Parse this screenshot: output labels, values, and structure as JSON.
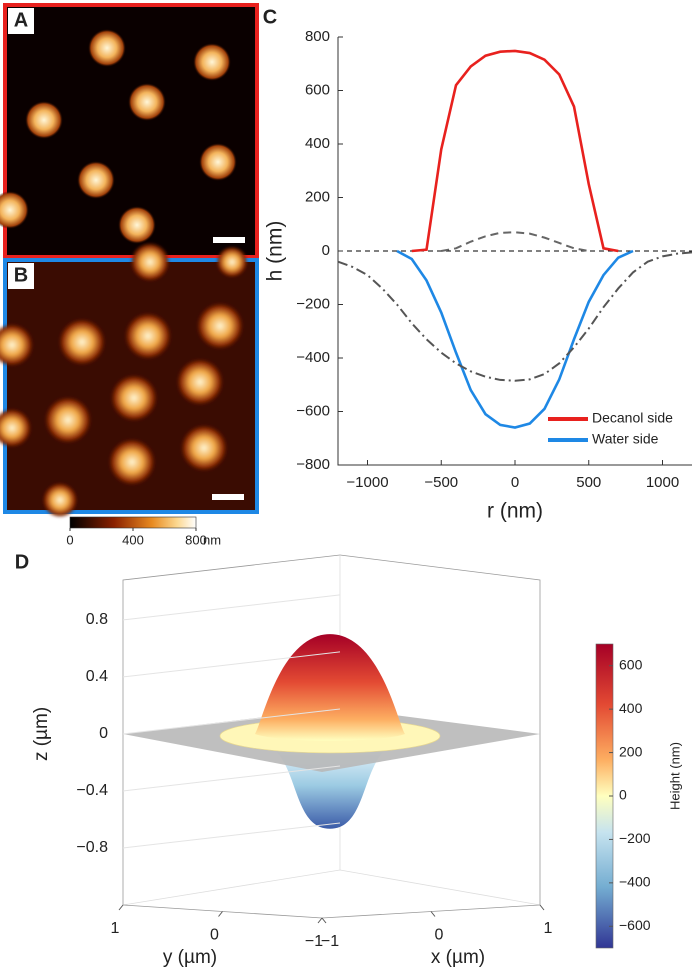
{
  "panels": [
    "A",
    "B",
    "C",
    "D"
  ],
  "chart_data": [
    {
      "type": "colorbar",
      "lim": [
        0,
        800
      ],
      "ticks": [
        0,
        400,
        800
      ],
      "unit": "nm",
      "colormap": "afmhot"
    },
    {
      "type": "line",
      "x": [
        -1200,
        -1100,
        -1000,
        -900,
        -800,
        -700,
        -600,
        -500,
        -400,
        -300,
        -200,
        -100,
        0,
        100,
        200,
        300,
        400,
        500,
        600,
        700,
        800,
        900,
        1000,
        1100,
        1200
      ],
      "series": [
        {
          "name": "Decanol side",
          "color": "#e8211e",
          "linestyle": "solid",
          "values": [
            null,
            null,
            null,
            null,
            null,
            0,
            5,
            380,
            620,
            690,
            730,
            745,
            748,
            740,
            715,
            660,
            540,
            250,
            10,
            0,
            null,
            null,
            null,
            null,
            null
          ]
        },
        {
          "name": "Water side",
          "color": "#1e88e5",
          "linestyle": "solid",
          "values": [
            null,
            null,
            null,
            null,
            0,
            -30,
            -110,
            -230,
            -380,
            -520,
            -610,
            -650,
            -660,
            -645,
            -590,
            -480,
            -330,
            -190,
            -90,
            -25,
            0,
            null,
            null,
            null,
            null
          ]
        },
        {
          "color": "#555555",
          "linestyle": "dashdot",
          "values": [
            -40,
            -60,
            -90,
            -140,
            -200,
            -270,
            -330,
            -380,
            -420,
            -450,
            -470,
            -482,
            -485,
            -480,
            -460,
            -420,
            -360,
            -290,
            -210,
            -140,
            -80,
            -40,
            -20,
            -10,
            -5
          ]
        },
        {
          "color": "#666666",
          "linestyle": "dashed",
          "values": [
            null,
            null,
            null,
            null,
            null,
            null,
            null,
            0,
            10,
            35,
            55,
            68,
            70,
            65,
            50,
            30,
            10,
            0,
            null,
            null,
            null,
            null,
            null,
            null,
            null
          ]
        }
      ],
      "xlim": [
        -1200,
        1200
      ],
      "xticks": [
        {
          "value": -1000,
          "label": "−1000"
        },
        {
          "value": -500,
          "label": "−500"
        },
        0,
        500,
        1000
      ],
      "ylim": [
        -800,
        800
      ],
      "yticks": [
        {
          "value": -800,
          "label": "−800"
        },
        {
          "value": -600,
          "label": "−600"
        },
        {
          "value": -400,
          "label": "−400"
        },
        {
          "value": -200,
          "label": "−200"
        },
        0,
        200,
        400,
        600,
        800
      ],
      "xlabel": "r (nm)",
      "ylabel": "h (nm)",
      "legend": "lower right"
    },
    {
      "type": "surface3d",
      "xlim": [
        -1,
        1
      ],
      "ylim": [
        -1,
        1
      ],
      "zlim": [
        -1.2,
        1.08
      ],
      "xticks": [
        {
          "value": -1,
          "label": "−1"
        },
        0,
        1
      ],
      "yticks": [
        {
          "value": -1,
          "label": "−1"
        },
        0,
        1
      ],
      "zticks": [
        {
          "value": -0.8,
          "label": "−0.8"
        },
        {
          "value": -0.4,
          "label": "−0.4"
        },
        0,
        0.4,
        0.8
      ],
      "xlabel": "x (µm)",
      "ylabel": "y (µm)",
      "zlabel": "z (µm)",
      "colorbar": {
        "label": "Height (nm)",
        "lim": [
          -700,
          700
        ],
        "ticks": [
          {
            "value": -600,
            "label": "−600"
          },
          {
            "value": -400,
            "label": "−400"
          },
          {
            "value": -200,
            "label": "−200"
          },
          0,
          200,
          400,
          600
        ]
      }
    }
  ]
}
